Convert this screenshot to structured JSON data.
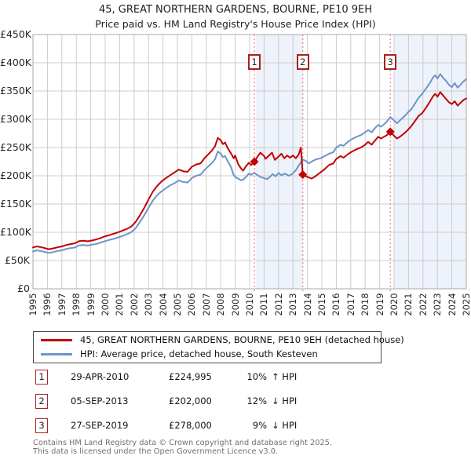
{
  "title": "45, GREAT NORTHERN GARDENS, BOURNE, PE10 9EH",
  "subtitle": "Price paid vs. HM Land Registry's House Price Index (HPI)",
  "footer": {
    "line1": "Contains HM Land Registry data © Crown copyright and database right 2025.",
    "line2": "This data is licensed under the Open Government Licence v3.0."
  },
  "chart_data": {
    "type": "line",
    "title": "45, GREAT NORTHERN GARDENS, BOURNE, PE10 9EH",
    "subtitle": "Price paid vs. HM Land Registry's House Price Index (HPI)",
    "xlabel": "",
    "ylabel": "",
    "xlim": [
      1995,
      2025
    ],
    "ylim_gbp": [
      0,
      450000
    ],
    "grid": true,
    "legend_position": "bottom",
    "colors": {
      "property_line": "#c40000",
      "hpi_line": "#6f94c6",
      "shaded_band": "#edf2fb",
      "gridline": "#cccccc",
      "plot_border": "#a9a9a9",
      "event_dotted_line": "#f27d7d",
      "flag_border": "#aa2020"
    },
    "y_axis": {
      "ticks": [
        {
          "value": 0,
          "label": "£0"
        },
        {
          "value": 50,
          "label": "£50K"
        },
        {
          "value": 100,
          "label": "£100K"
        },
        {
          "value": 150,
          "label": "£150K"
        },
        {
          "value": 200,
          "label": "£200K"
        },
        {
          "value": 250,
          "label": "£250K"
        },
        {
          "value": 300,
          "label": "£300K"
        },
        {
          "value": 350,
          "label": "£350K"
        },
        {
          "value": 400,
          "label": "£400K"
        },
        {
          "value": 450,
          "label": "£450K"
        }
      ]
    },
    "x_axis": {
      "years": [
        "1995",
        "1996",
        "1997",
        "1998",
        "1999",
        "2000",
        "2001",
        "2002",
        "2003",
        "2004",
        "2005",
        "2006",
        "2007",
        "2008",
        "2009",
        "2010",
        "2011",
        "2012",
        "2013",
        "2014",
        "2015",
        "2016",
        "2017",
        "2018",
        "2019",
        "2020",
        "2021",
        "2022",
        "2023",
        "2024",
        "2025"
      ]
    },
    "shaded_bands": [
      [
        2010.43,
        2013.7
      ],
      [
        2020.0,
        2025.0
      ]
    ],
    "series": [
      {
        "name": "45, GREAT NORTHERN GARDENS, BOURNE, PE10 9EH (detached house)",
        "color": "#c40000",
        "unit": "GBP thousands",
        "points": [
          [
            1995.0,
            73
          ],
          [
            1995.25,
            75
          ],
          [
            1995.5,
            74
          ],
          [
            1995.75,
            72.5
          ],
          [
            1996.1,
            70
          ],
          [
            1996.4,
            71.5
          ],
          [
            1996.7,
            73.5
          ],
          [
            1997.0,
            75
          ],
          [
            1997.3,
            77.5
          ],
          [
            1997.6,
            79
          ],
          [
            1997.9,
            80.5
          ],
          [
            1998.2,
            84.5
          ],
          [
            1998.5,
            85
          ],
          [
            1998.8,
            84
          ],
          [
            1999.1,
            85.5
          ],
          [
            1999.4,
            87.5
          ],
          [
            1999.7,
            90
          ],
          [
            2000.0,
            93
          ],
          [
            2000.3,
            95
          ],
          [
            2000.6,
            97.5
          ],
          [
            2000.9,
            100
          ],
          [
            2001.2,
            103
          ],
          [
            2001.5,
            106
          ],
          [
            2001.8,
            110
          ],
          [
            2002.1,
            118
          ],
          [
            2002.4,
            130
          ],
          [
            2002.7,
            143
          ],
          [
            2003.0,
            158
          ],
          [
            2003.3,
            172
          ],
          [
            2003.6,
            182
          ],
          [
            2003.9,
            190
          ],
          [
            2004.2,
            196
          ],
          [
            2004.5,
            201
          ],
          [
            2004.8,
            206
          ],
          [
            2005.1,
            211
          ],
          [
            2005.4,
            208
          ],
          [
            2005.7,
            207
          ],
          [
            2006.0,
            216
          ],
          [
            2006.3,
            220
          ],
          [
            2006.6,
            222
          ],
          [
            2006.9,
            232
          ],
          [
            2007.1,
            237
          ],
          [
            2007.4,
            245
          ],
          [
            2007.6,
            252
          ],
          [
            2007.8,
            267
          ],
          [
            2008.0,
            263
          ],
          [
            2008.15,
            256
          ],
          [
            2008.3,
            259
          ],
          [
            2008.5,
            248
          ],
          [
            2008.7,
            240
          ],
          [
            2008.9,
            231
          ],
          [
            2009.0,
            236
          ],
          [
            2009.2,
            221
          ],
          [
            2009.4,
            213
          ],
          [
            2009.55,
            209
          ],
          [
            2009.75,
            217
          ],
          [
            2009.95,
            223
          ],
          [
            2010.1,
            219
          ],
          [
            2010.33,
            225
          ],
          [
            2010.55,
            234
          ],
          [
            2010.75,
            241
          ],
          [
            2011.0,
            235
          ],
          [
            2011.1,
            230
          ],
          [
            2011.35,
            236
          ],
          [
            2011.55,
            241
          ],
          [
            2011.75,
            228
          ],
          [
            2012.0,
            234
          ],
          [
            2012.2,
            239
          ],
          [
            2012.4,
            231
          ],
          [
            2012.6,
            236
          ],
          [
            2012.8,
            232
          ],
          [
            2013.0,
            236
          ],
          [
            2013.2,
            231
          ],
          [
            2013.4,
            238
          ],
          [
            2013.55,
            250
          ],
          [
            2013.68,
            202
          ],
          [
            2013.9,
            199
          ],
          [
            2014.1,
            197
          ],
          [
            2014.3,
            195
          ],
          [
            2014.6,
            200
          ],
          [
            2014.9,
            206
          ],
          [
            2015.2,
            212
          ],
          [
            2015.5,
            219
          ],
          [
            2015.8,
            222
          ],
          [
            2016.0,
            230
          ],
          [
            2016.3,
            235
          ],
          [
            2016.5,
            232
          ],
          [
            2016.8,
            238
          ],
          [
            2017.1,
            243
          ],
          [
            2017.4,
            247
          ],
          [
            2017.7,
            250
          ],
          [
            2018.0,
            255
          ],
          [
            2018.2,
            260
          ],
          [
            2018.45,
            255
          ],
          [
            2018.7,
            263
          ],
          [
            2018.9,
            269
          ],
          [
            2019.1,
            266
          ],
          [
            2019.3,
            269
          ],
          [
            2019.5,
            272
          ],
          [
            2019.74,
            278
          ],
          [
            2019.95,
            272
          ],
          [
            2020.2,
            266
          ],
          [
            2020.45,
            270
          ],
          [
            2020.7,
            275
          ],
          [
            2020.95,
            281
          ],
          [
            2021.2,
            288
          ],
          [
            2021.45,
            297
          ],
          [
            2021.7,
            306
          ],
          [
            2021.95,
            311
          ],
          [
            2022.2,
            320
          ],
          [
            2022.45,
            330
          ],
          [
            2022.7,
            341
          ],
          [
            2022.85,
            345
          ],
          [
            2023.0,
            340
          ],
          [
            2023.2,
            348
          ],
          [
            2023.4,
            342
          ],
          [
            2023.6,
            336
          ],
          [
            2023.8,
            330
          ],
          [
            2024.0,
            327
          ],
          [
            2024.2,
            332
          ],
          [
            2024.4,
            324
          ],
          [
            2024.6,
            329
          ],
          [
            2024.8,
            334
          ],
          [
            2025.0,
            337
          ]
        ]
      },
      {
        "name": "HPI: Average price, detached house, South Kesteven",
        "color": "#6f94c6",
        "unit": "GBP thousands",
        "points": [
          [
            1995.0,
            66
          ],
          [
            1995.25,
            68
          ],
          [
            1995.5,
            67
          ],
          [
            1995.75,
            65.5
          ],
          [
            1996.1,
            63.5
          ],
          [
            1996.4,
            65
          ],
          [
            1996.7,
            67
          ],
          [
            1997.0,
            68
          ],
          [
            1997.3,
            70.5
          ],
          [
            1997.6,
            72
          ],
          [
            1997.9,
            73
          ],
          [
            1998.2,
            77
          ],
          [
            1998.5,
            77.5
          ],
          [
            1998.8,
            76.5
          ],
          [
            1999.1,
            78
          ],
          [
            1999.4,
            79.5
          ],
          [
            1999.7,
            82
          ],
          [
            2000.0,
            84.5
          ],
          [
            2000.3,
            86.5
          ],
          [
            2000.6,
            88.5
          ],
          [
            2000.9,
            91
          ],
          [
            2001.2,
            93.5
          ],
          [
            2001.5,
            96.5
          ],
          [
            2001.8,
            100
          ],
          [
            2002.1,
            107
          ],
          [
            2002.4,
            118
          ],
          [
            2002.7,
            130
          ],
          [
            2003.0,
            143.5
          ],
          [
            2003.3,
            156
          ],
          [
            2003.6,
            165.5
          ],
          [
            2003.9,
            172.5
          ],
          [
            2004.2,
            178
          ],
          [
            2004.5,
            183
          ],
          [
            2004.8,
            187
          ],
          [
            2005.1,
            192
          ],
          [
            2005.4,
            189
          ],
          [
            2005.7,
            188
          ],
          [
            2006.0,
            196
          ],
          [
            2006.3,
            200
          ],
          [
            2006.6,
            202
          ],
          [
            2006.9,
            211
          ],
          [
            2007.1,
            215.5
          ],
          [
            2007.4,
            223
          ],
          [
            2007.6,
            229
          ],
          [
            2007.8,
            243
          ],
          [
            2008.0,
            239
          ],
          [
            2008.15,
            233
          ],
          [
            2008.3,
            235
          ],
          [
            2008.5,
            225
          ],
          [
            2008.7,
            216
          ],
          [
            2008.9,
            201
          ],
          [
            2009.0,
            198
          ],
          [
            2009.2,
            195
          ],
          [
            2009.4,
            192
          ],
          [
            2009.55,
            193
          ],
          [
            2009.75,
            198
          ],
          [
            2009.95,
            204
          ],
          [
            2010.1,
            202
          ],
          [
            2010.33,
            205
          ],
          [
            2010.55,
            201
          ],
          [
            2010.75,
            198
          ],
          [
            2011.0,
            196
          ],
          [
            2011.2,
            194
          ],
          [
            2011.4,
            198
          ],
          [
            2011.6,
            203
          ],
          [
            2011.8,
            199
          ],
          [
            2012.0,
            205
          ],
          [
            2012.2,
            201
          ],
          [
            2012.45,
            204
          ],
          [
            2012.7,
            200
          ],
          [
            2012.95,
            203
          ],
          [
            2013.2,
            210
          ],
          [
            2013.45,
            220
          ],
          [
            2013.68,
            229
          ],
          [
            2013.9,
            226
          ],
          [
            2014.1,
            222
          ],
          [
            2014.35,
            226
          ],
          [
            2014.6,
            229
          ],
          [
            2014.9,
            231
          ],
          [
            2015.2,
            235
          ],
          [
            2015.5,
            239
          ],
          [
            2015.8,
            242
          ],
          [
            2016.0,
            250
          ],
          [
            2016.3,
            255
          ],
          [
            2016.5,
            253
          ],
          [
            2016.8,
            260
          ],
          [
            2017.1,
            265
          ],
          [
            2017.4,
            269
          ],
          [
            2017.7,
            272
          ],
          [
            2018.0,
            277
          ],
          [
            2018.2,
            281
          ],
          [
            2018.45,
            277
          ],
          [
            2018.7,
            285
          ],
          [
            2018.9,
            290
          ],
          [
            2019.1,
            287
          ],
          [
            2019.3,
            291
          ],
          [
            2019.5,
            296
          ],
          [
            2019.74,
            304
          ],
          [
            2019.95,
            299
          ],
          [
            2020.2,
            293
          ],
          [
            2020.45,
            299
          ],
          [
            2020.7,
            305
          ],
          [
            2020.95,
            312
          ],
          [
            2021.2,
            318
          ],
          [
            2021.45,
            328
          ],
          [
            2021.7,
            338
          ],
          [
            2021.95,
            345
          ],
          [
            2022.2,
            354
          ],
          [
            2022.45,
            363
          ],
          [
            2022.7,
            374
          ],
          [
            2022.85,
            378
          ],
          [
            2023.0,
            372
          ],
          [
            2023.2,
            380
          ],
          [
            2023.4,
            373
          ],
          [
            2023.6,
            368
          ],
          [
            2023.8,
            361
          ],
          [
            2024.0,
            357
          ],
          [
            2024.2,
            364
          ],
          [
            2024.4,
            356
          ],
          [
            2024.6,
            361
          ],
          [
            2024.8,
            367
          ],
          [
            2025.0,
            371
          ]
        ]
      }
    ],
    "transactions": [
      {
        "num": "1",
        "date": "29-APR-2010",
        "price": "£224,995",
        "pct": "10%",
        "relation": "↑ HPI",
        "year": 2010.33,
        "value_k": 225.0
      },
      {
        "num": "2",
        "date": "05-SEP-2013",
        "price": "£202,000",
        "pct": "12%",
        "relation": "↓ HPI",
        "year": 2013.68,
        "value_k": 202.0
      },
      {
        "num": "3",
        "date": "27-SEP-2019",
        "price": "£278,000",
        "pct": "9%",
        "relation": "↓ HPI",
        "year": 2019.74,
        "value_k": 278.0
      }
    ]
  }
}
